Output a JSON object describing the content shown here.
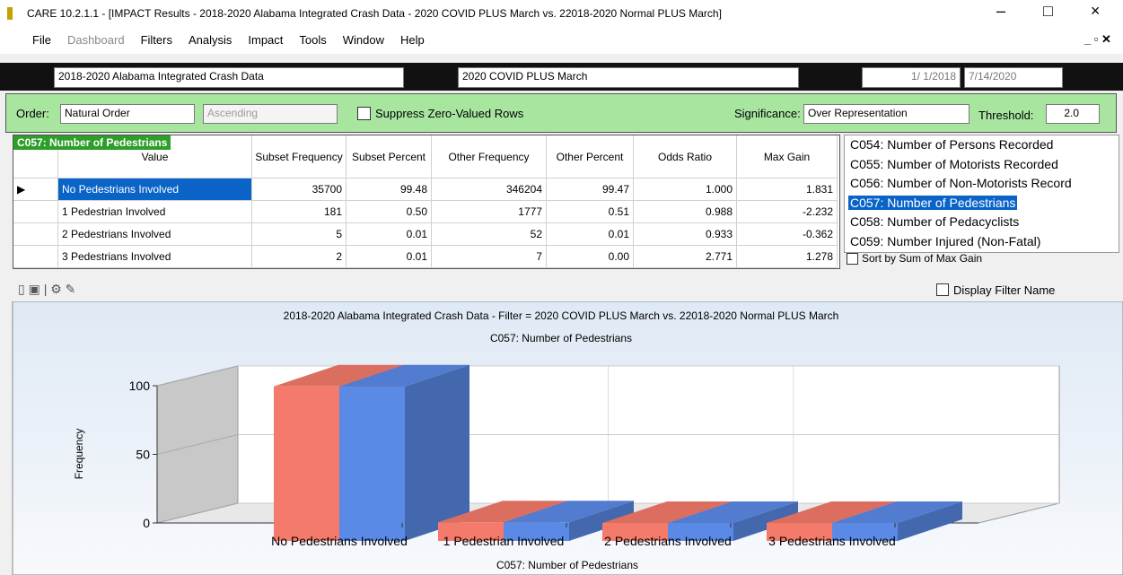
{
  "window": {
    "title": "CARE 10.2.1.1 - [IMPACT Results - 2018-2020 Alabama Integrated Crash Data - 2020 COVID PLUS March vs. 22018-2020 Normal PLUS March]",
    "menu": [
      "File",
      "Dashboard",
      "Filters",
      "Analysis",
      "Impact",
      "Tools",
      "Window",
      "Help"
    ]
  },
  "toolbar": {
    "database": "2018-2020 Alabama Integrated Crash Data",
    "filter": "2020 COVID PLUS March",
    "date_from": "1/ 1/2018",
    "date_to": "7/14/2020"
  },
  "options": {
    "order_label": "Order:",
    "order": "Natural Order",
    "direction": "Ascending",
    "suppress": "Suppress Zero-Valued Rows",
    "significance_label": "Significance:",
    "significance": "Over Representation",
    "threshold_label": "Threshold:",
    "threshold": "2.0"
  },
  "table": {
    "caption": "C057: Number of Pedestrians",
    "columns": [
      "Value",
      "Subset Frequency",
      "Subset Percent",
      "Other Frequency",
      "Other Percent",
      "Odds Ratio",
      "Max Gain"
    ],
    "rows": [
      [
        "No Pedestrians Involved",
        "35700",
        "99.48",
        "346204",
        "99.47",
        "1.000",
        "1.831"
      ],
      [
        "1 Pedestrian Involved",
        "181",
        "0.50",
        "1777",
        "0.51",
        "0.988",
        "-2.232"
      ],
      [
        "2 Pedestrians Involved",
        "5",
        "0.01",
        "52",
        "0.01",
        "0.933",
        "-0.362"
      ],
      [
        "3 Pedestrians Involved",
        "2",
        "0.01",
        "7",
        "0.00",
        "2.771",
        "1.278"
      ]
    ]
  },
  "variables": {
    "items": [
      "C054: Number of Persons Recorded",
      "C055: Number of Motorists Recorded",
      "C056: Number of Non-Motorists Record",
      "C057: Number of Pedestrians",
      "C058: Number of Pedacyclists",
      "C059: Number Injured (Non-Fatal)"
    ],
    "selected": 3,
    "sort_label": "Sort by Sum of Max Gain"
  },
  "display_filter_name": "Display Filter Name",
  "chart_data": {
    "type": "bar3d",
    "title": "2018-2020 Alabama Integrated Crash Data - Filter = 2020 COVID PLUS March vs. 22018-2020 Normal PLUS March",
    "subtitle": "C057: Number of Pedestrians",
    "x_label": "C057: Number of Pedestrians",
    "y_label": "Frequency",
    "categories": [
      "No Pedestrians Involved",
      "1 Pedestrian Involved",
      "2 Pedestrians Involved",
      "3 Pedestrians Involved"
    ],
    "series": [
      {
        "color": "#f47a6b",
        "values": [
          99.48,
          0.5,
          0.01,
          0.01
        ]
      },
      {
        "color": "#5b8ae6",
        "values": [
          99.47,
          0.51,
          0.01,
          0.0
        ]
      }
    ],
    "ylim": [
      0,
      100
    ],
    "yticks": [
      0,
      50,
      100
    ],
    "grid": true
  }
}
